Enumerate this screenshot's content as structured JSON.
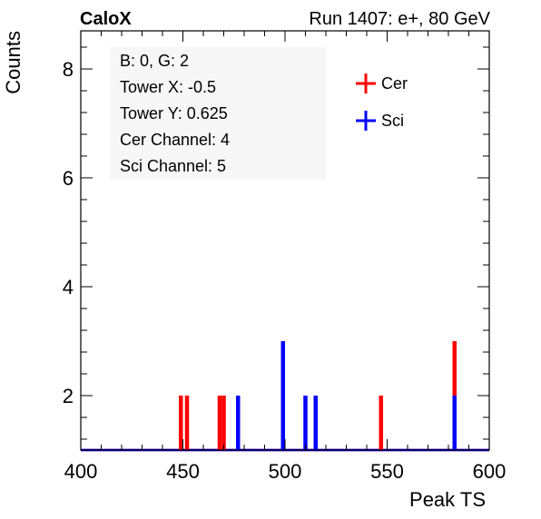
{
  "header": {
    "left": "CaloX",
    "right": "Run 1407: e+, 80 GeV"
  },
  "info_box": [
    "B: 0, G: 2",
    "Tower X: -0.5",
    "Tower Y: 0.625",
    "Cer Channel: 4",
    "Sci Channel: 5"
  ],
  "colors": {
    "cer": "#ff0000",
    "sci": "#0000ff",
    "axis": "#000000"
  },
  "chart_data": {
    "type": "bar",
    "xlabel": "Peak TS",
    "ylabel": "Counts",
    "xlim": [
      400,
      600
    ],
    "ylim": [
      1,
      8.7
    ],
    "xticks": [
      400,
      450,
      500,
      550,
      600
    ],
    "yticks": [
      2,
      4,
      6,
      8
    ],
    "baseline": 1,
    "legend_position": "top-right",
    "series": [
      {
        "name": "Cer",
        "color": "#ff0000",
        "points": [
          {
            "x": 449,
            "y": 2
          },
          {
            "x": 452,
            "y": 2
          },
          {
            "x": 468,
            "y": 2
          },
          {
            "x": 470,
            "y": 2
          },
          {
            "x": 547,
            "y": 2
          },
          {
            "x": 583,
            "y": 3
          }
        ]
      },
      {
        "name": "Sci",
        "color": "#0000ff",
        "points": [
          {
            "x": 477,
            "y": 2
          },
          {
            "x": 499,
            "y": 3
          },
          {
            "x": 510,
            "y": 2
          },
          {
            "x": 515,
            "y": 2
          },
          {
            "x": 583,
            "y": 2
          }
        ]
      }
    ]
  }
}
